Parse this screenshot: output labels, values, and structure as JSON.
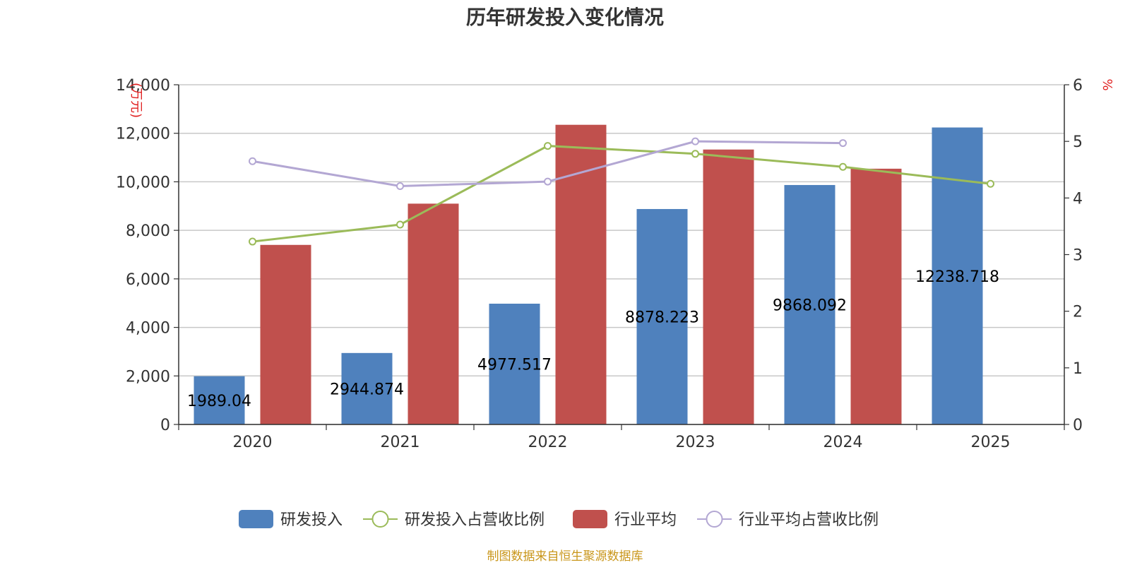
{
  "chart_data": {
    "type": "bar",
    "title": "历年研发投入变化情况",
    "categories": [
      "2020",
      "2021",
      "2022",
      "2023",
      "2024",
      "2025"
    ],
    "y_left": {
      "unit": "(万元)",
      "min": 0,
      "max": 14000,
      "ticks": [
        "0",
        "2,000",
        "4,000",
        "6,000",
        "8,000",
        "10,000",
        "12,000",
        "14,000"
      ]
    },
    "y_right": {
      "unit": "%",
      "min": 0,
      "max": 6,
      "ticks": [
        "0",
        "1",
        "2",
        "3",
        "4",
        "5",
        "6"
      ]
    },
    "series": [
      {
        "name": "研发投入",
        "type": "bar",
        "axis": "left",
        "color": "#4f81bd",
        "values": [
          1989.04,
          2944.874,
          4977.517,
          8878.223,
          9868.092,
          12238.718
        ],
        "labels": [
          "1989.04",
          "2944.874",
          "4977.517",
          "8878.223",
          "9868.092",
          "12238.718"
        ]
      },
      {
        "name": "研发投入占营收比例",
        "type": "line",
        "axis": "right",
        "color": "#9bbb59",
        "values": [
          3.23,
          3.53,
          4.92,
          4.78,
          4.55,
          4.25
        ]
      },
      {
        "name": "行业平均",
        "type": "bar",
        "axis": "left",
        "color": "#c0504d",
        "values": [
          7400,
          9100,
          12350,
          11330,
          10540,
          null
        ]
      },
      {
        "name": "行业平均占营收比例",
        "type": "line",
        "axis": "right",
        "color": "#b3a7d3",
        "values": [
          4.65,
          4.21,
          4.29,
          5.0,
          4.97,
          null
        ]
      }
    ],
    "legend_position": "bottom",
    "grid": true
  },
  "footer": {
    "source": "制图数据来自恒生聚源数据库"
  }
}
